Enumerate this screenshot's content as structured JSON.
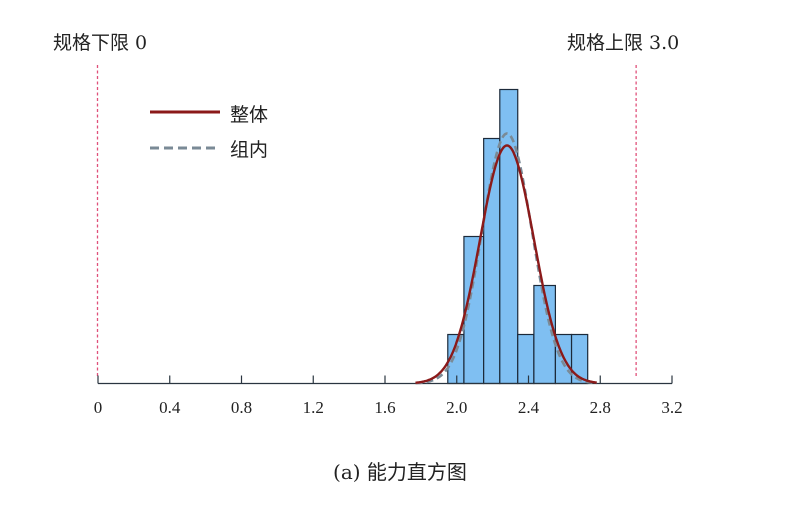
{
  "chart_data": {
    "type": "bar",
    "title": "(a) 能力直方图",
    "xlabel": "",
    "ylabel": "",
    "xlim": [
      0,
      3.2
    ],
    "x_ticks": [
      "0",
      "0.4",
      "0.8",
      "1.2",
      "1.6",
      "2.0",
      "2.4",
      "2.8",
      "3.2"
    ],
    "x_tick_values": [
      0,
      0.4,
      0.8,
      1.2,
      1.6,
      2.0,
      2.4,
      2.8,
      3.2
    ],
    "bins": [
      {
        "start": 1.95,
        "end": 2.04,
        "count": 1
      },
      {
        "start": 2.04,
        "end": 2.15,
        "count": 3
      },
      {
        "start": 2.15,
        "end": 2.24,
        "count": 5
      },
      {
        "start": 2.24,
        "end": 2.34,
        "count": 6
      },
      {
        "start": 2.34,
        "end": 2.43,
        "count": 1
      },
      {
        "start": 2.43,
        "end": 2.55,
        "count": 2
      },
      {
        "start": 2.55,
        "end": 2.64,
        "count": 1
      },
      {
        "start": 2.64,
        "end": 2.73,
        "count": 1
      }
    ],
    "spec_limits": {
      "lsl": {
        "label": "规格下限 0",
        "value": 0
      },
      "usl": {
        "label": "规格上限 3.0",
        "value": 3.0
      }
    },
    "series": [
      {
        "name": "整体",
        "type": "line",
        "style": "solid",
        "color": "#8b1a1a",
        "mean": 2.28,
        "sd": 0.15
      },
      {
        "name": "组内",
        "type": "line",
        "style": "dashed",
        "color": "#7a8a96",
        "mean": 2.28,
        "sd": 0.14
      }
    ],
    "legend": {
      "position": "upper-left",
      "entries": [
        "整体",
        "组内"
      ]
    },
    "grid": false
  },
  "labels": {
    "lsl": "规格下限 0",
    "usl": "规格上限 3.0",
    "legend_overall": "整体",
    "legend_within": "组内",
    "caption": "(a) 能力直方图"
  },
  "colors": {
    "bar_fill": "#7fbff2",
    "bar_edge": "#1c2a3a",
    "overall": "#8b1a1a",
    "within": "#7a8a96",
    "spec_line": "#e0507a",
    "axis": "#2a3540"
  }
}
